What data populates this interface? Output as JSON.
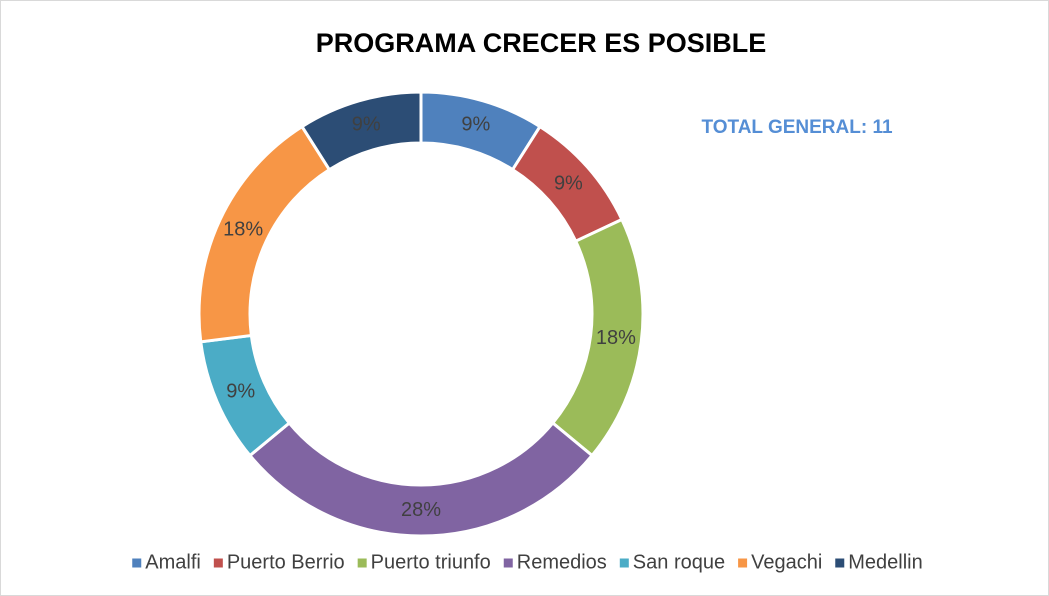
{
  "chart_data": {
    "type": "donut",
    "title": "PROGRAMA CRECER ES POSIBLE",
    "annotation": "TOTAL GENERAL: 11",
    "categories": [
      "Amalfi",
      "Puerto Berrio",
      "Puerto triunfo",
      "Remedios",
      "San roque",
      "Vegachi",
      "Medellin"
    ],
    "values": [
      9,
      9,
      18,
      28,
      9,
      18,
      9
    ],
    "value_labels": [
      "9%",
      "9%",
      "18%",
      "28%",
      "9%",
      "18%",
      "9%"
    ],
    "colors": [
      "#4f81bd",
      "#c0504d",
      "#9bbb59",
      "#8064a2",
      "#4bacc6",
      "#f79646",
      "#2c4d75"
    ],
    "legend": "bottom"
  }
}
